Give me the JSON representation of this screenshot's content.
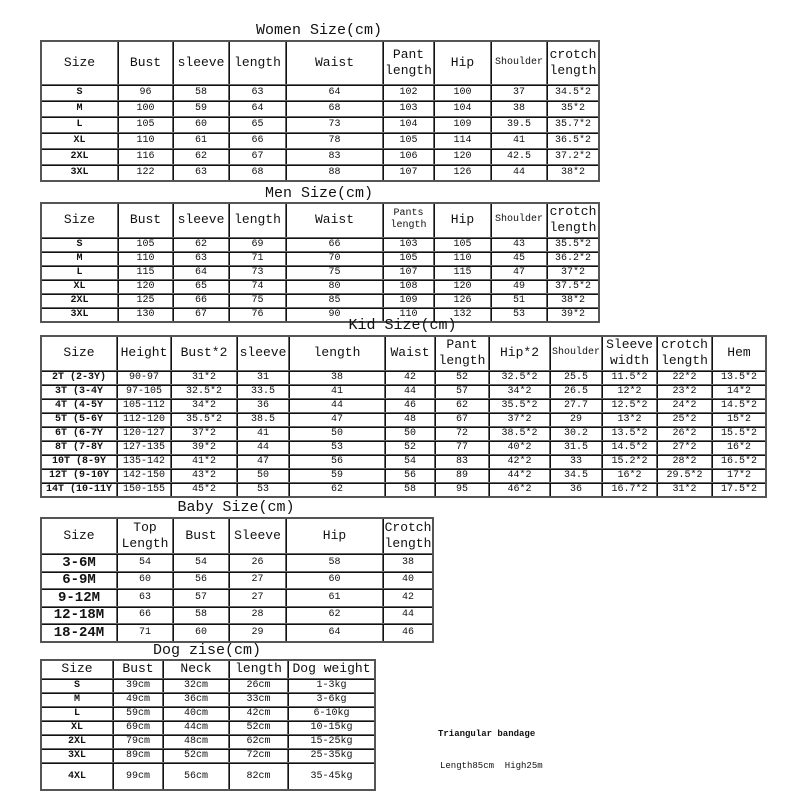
{
  "women": {
    "title": "Women Size(cm)",
    "headers": [
      "Size",
      "Bust",
      "sleeve",
      "length",
      "Waist",
      "Pant length",
      "Hip",
      "Shoulder",
      "crotch length"
    ],
    "rows": [
      [
        "S",
        "96",
        "58",
        "63",
        "64",
        "102",
        "100",
        "37",
        "34.5*2"
      ],
      [
        "M",
        "100",
        "59",
        "64",
        "68",
        "103",
        "104",
        "38",
        "35*2"
      ],
      [
        "L",
        "105",
        "60",
        "65",
        "73",
        "104",
        "109",
        "39.5",
        "35.7*2"
      ],
      [
        "XL",
        "110",
        "61",
        "66",
        "78",
        "105",
        "114",
        "41",
        "36.5*2"
      ],
      [
        "2XL",
        "116",
        "62",
        "67",
        "83",
        "106",
        "120",
        "42.5",
        "37.2*2"
      ],
      [
        "3XL",
        "122",
        "63",
        "68",
        "88",
        "107",
        "126",
        "44",
        "38*2"
      ]
    ]
  },
  "men": {
    "title": "Men Size(cm)",
    "headers": [
      "Size",
      "Bust",
      "sleeve",
      "length",
      "Waist",
      "Pants length",
      "Hip",
      "Shoulder",
      "crotch length"
    ],
    "rows": [
      [
        "S",
        "105",
        "62",
        "69",
        "66",
        "103",
        "105",
        "43",
        "35.5*2"
      ],
      [
        "M",
        "110",
        "63",
        "71",
        "70",
        "105",
        "110",
        "45",
        "36.2*2"
      ],
      [
        "L",
        "115",
        "64",
        "73",
        "75",
        "107",
        "115",
        "47",
        "37*2"
      ],
      [
        "XL",
        "120",
        "65",
        "74",
        "80",
        "108",
        "120",
        "49",
        "37.5*2"
      ],
      [
        "2XL",
        "125",
        "66",
        "75",
        "85",
        "109",
        "126",
        "51",
        "38*2"
      ],
      [
        "3XL",
        "130",
        "67",
        "76",
        "90",
        "110",
        "132",
        "53",
        "39*2"
      ]
    ]
  },
  "kid": {
    "title": "Kid Size(cm)",
    "headers": [
      "Size",
      "Height",
      "Bust*2",
      "sleeve",
      "length",
      "Waist",
      "Pant length",
      "Hip*2",
      "Shoulder",
      "Sleeve width",
      "crotch length",
      "Hem"
    ],
    "rows": [
      [
        "2T (2-3Y)",
        "90-97",
        "31*2",
        "31",
        "38",
        "42",
        "52",
        "32.5*2",
        "25.5",
        "11.5*2",
        "22*2",
        "13.5*2"
      ],
      [
        "3T (3-4Y",
        "97-105",
        "32.5*2",
        "33.5",
        "41",
        "44",
        "57",
        "34*2",
        "26.5",
        "12*2",
        "23*2",
        "14*2"
      ],
      [
        "4T (4-5Y",
        "105-112",
        "34*2",
        "36",
        "44",
        "46",
        "62",
        "35.5*2",
        "27.7",
        "12.5*2",
        "24*2",
        "14.5*2"
      ],
      [
        "5T (5-6Y",
        "112-120",
        "35.5*2",
        "38.5",
        "47",
        "48",
        "67",
        "37*2",
        "29",
        "13*2",
        "25*2",
        "15*2"
      ],
      [
        "6T (6-7Y",
        "120-127",
        "37*2",
        "41",
        "50",
        "50",
        "72",
        "38.5*2",
        "30.2",
        "13.5*2",
        "26*2",
        "15.5*2"
      ],
      [
        "8T (7-8Y",
        "127-135",
        "39*2",
        "44",
        "53",
        "52",
        "77",
        "40*2",
        "31.5",
        "14.5*2",
        "27*2",
        "16*2"
      ],
      [
        "10T (8-9Y",
        "135-142",
        "41*2",
        "47",
        "56",
        "54",
        "83",
        "42*2",
        "33",
        "15.2*2",
        "28*2",
        "16.5*2"
      ],
      [
        "12T (9-10Y",
        "142-150",
        "43*2",
        "50",
        "59",
        "56",
        "89",
        "44*2",
        "34.5",
        "16*2",
        "29.5*2",
        "17*2"
      ],
      [
        "14T (10-11Y",
        "150-155",
        "45*2",
        "53",
        "62",
        "58",
        "95",
        "46*2",
        "36",
        "16.7*2",
        "31*2",
        "17.5*2"
      ]
    ]
  },
  "baby": {
    "title": "Baby Size(cm)",
    "headers": [
      "Size",
      "Top Length",
      "Bust",
      "Sleeve",
      "Hip",
      "Crotch length"
    ],
    "rows": [
      [
        "3-6M",
        "54",
        "54",
        "26",
        "58",
        "38"
      ],
      [
        "6-9M",
        "60",
        "56",
        "27",
        "60",
        "40"
      ],
      [
        "9-12M",
        "63",
        "57",
        "27",
        "61",
        "42"
      ],
      [
        "12-18M",
        "66",
        "58",
        "28",
        "62",
        "44"
      ],
      [
        "18-24M",
        "71",
        "60",
        "29",
        "64",
        "46"
      ]
    ]
  },
  "dog": {
    "title": "Dog zise(cm)",
    "headers": [
      "Size",
      "Bust",
      "Neck",
      "length",
      "Dog weight"
    ],
    "rows": [
      [
        "S",
        "39cm",
        "32cm",
        "26cm",
        "1-3kg"
      ],
      [
        "M",
        "49cm",
        "36cm",
        "33cm",
        "3-6kg"
      ],
      [
        "L",
        "59cm",
        "40cm",
        "42cm",
        "6-10kg"
      ],
      [
        "XL",
        "69cm",
        "44cm",
        "52cm",
        "10-15kg"
      ],
      [
        "2XL",
        "79cm",
        "48cm",
        "62cm",
        "15-25kg"
      ],
      [
        "3XL",
        "89cm",
        "52cm",
        "72cm",
        "25-35kg"
      ],
      [
        "4XL",
        "99cm",
        "56cm",
        "82cm",
        "35-45kg"
      ]
    ]
  },
  "bandage": {
    "title": "Triangular bandage",
    "dims": "Length85cm  High25m"
  }
}
